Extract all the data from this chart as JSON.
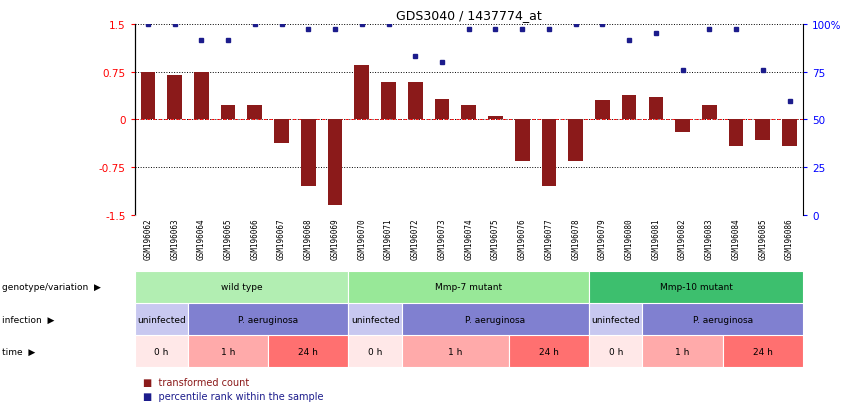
{
  "title": "GDS3040 / 1437774_at",
  "samples": [
    "GSM196062",
    "GSM196063",
    "GSM196064",
    "GSM196065",
    "GSM196066",
    "GSM196067",
    "GSM196068",
    "GSM196069",
    "GSM196070",
    "GSM196071",
    "GSM196072",
    "GSM196073",
    "GSM196074",
    "GSM196075",
    "GSM196076",
    "GSM196077",
    "GSM196078",
    "GSM196079",
    "GSM196080",
    "GSM196081",
    "GSM196082",
    "GSM196083",
    "GSM196084",
    "GSM196085",
    "GSM196086"
  ],
  "bar_values": [
    0.75,
    0.7,
    0.75,
    0.22,
    0.22,
    -0.38,
    -1.05,
    -1.35,
    0.85,
    0.58,
    0.58,
    0.32,
    0.22,
    0.05,
    -0.65,
    -1.05,
    -0.65,
    0.3,
    0.38,
    0.35,
    -0.2,
    0.22,
    -0.42,
    -0.32,
    -0.42
  ],
  "blue_dot_values": [
    1.5,
    1.5,
    1.25,
    1.25,
    1.5,
    1.5,
    1.42,
    1.42,
    1.5,
    1.5,
    1.0,
    0.9,
    1.42,
    1.42,
    1.42,
    1.42,
    1.5,
    1.5,
    1.25,
    1.35,
    0.78,
    1.42,
    1.42,
    0.78,
    0.28
  ],
  "ylim": [
    -1.5,
    1.5
  ],
  "yticks_left": [
    -1.5,
    -0.75,
    0.0,
    0.75,
    1.5
  ],
  "ytick_labels_left": [
    "-1.5",
    "-0.75",
    "0",
    "0.75",
    "1.5"
  ],
  "yticks_right_pos": [
    -1.5,
    -0.75,
    0.0,
    0.75,
    1.5
  ],
  "ytick_labels_right": [
    "0",
    "25",
    "50",
    "75",
    "100%"
  ],
  "bar_color": "#8B1A1A",
  "dot_color": "#1C1C8C",
  "genotype_groups": [
    {
      "label": "wild type",
      "start": 0,
      "end": 7,
      "color": "#B2EEB2"
    },
    {
      "label": "Mmp-7 mutant",
      "start": 8,
      "end": 16,
      "color": "#98E898"
    },
    {
      "label": "Mmp-10 mutant",
      "start": 17,
      "end": 24,
      "color": "#3DBF6E"
    }
  ],
  "infection_groups": [
    {
      "label": "uninfected",
      "start": 0,
      "end": 1,
      "color": "#C8C8F0"
    },
    {
      "label": "P. aeruginosa",
      "start": 2,
      "end": 7,
      "color": "#8080D0"
    },
    {
      "label": "uninfected",
      "start": 8,
      "end": 9,
      "color": "#C8C8F0"
    },
    {
      "label": "P. aeruginosa",
      "start": 10,
      "end": 16,
      "color": "#8080D0"
    },
    {
      "label": "uninfected",
      "start": 17,
      "end": 18,
      "color": "#C8C8F0"
    },
    {
      "label": "P. aeruginosa",
      "start": 19,
      "end": 24,
      "color": "#8080D0"
    }
  ],
  "time_groups": [
    {
      "label": "0 h",
      "start": 0,
      "end": 1,
      "color": "#FFE8E8"
    },
    {
      "label": "1 h",
      "start": 2,
      "end": 4,
      "color": "#FFAAAA"
    },
    {
      "label": "24 h",
      "start": 5,
      "end": 7,
      "color": "#FF7070"
    },
    {
      "label": "0 h",
      "start": 8,
      "end": 9,
      "color": "#FFE8E8"
    },
    {
      "label": "1 h",
      "start": 10,
      "end": 13,
      "color": "#FFAAAA"
    },
    {
      "label": "24 h",
      "start": 14,
      "end": 16,
      "color": "#FF7070"
    },
    {
      "label": "0 h",
      "start": 17,
      "end": 18,
      "color": "#FFE8E8"
    },
    {
      "label": "1 h",
      "start": 19,
      "end": 21,
      "color": "#FFAAAA"
    },
    {
      "label": "24 h",
      "start": 22,
      "end": 24,
      "color": "#FF7070"
    }
  ],
  "row_labels": [
    "genotype/variation",
    "infection",
    "time"
  ],
  "legend_bar_label": "transformed count",
  "legend_dot_label": "percentile rank within the sample",
  "xtick_bg_color": "#D8D8D8",
  "chart_bg_color": "#FFFFFF"
}
